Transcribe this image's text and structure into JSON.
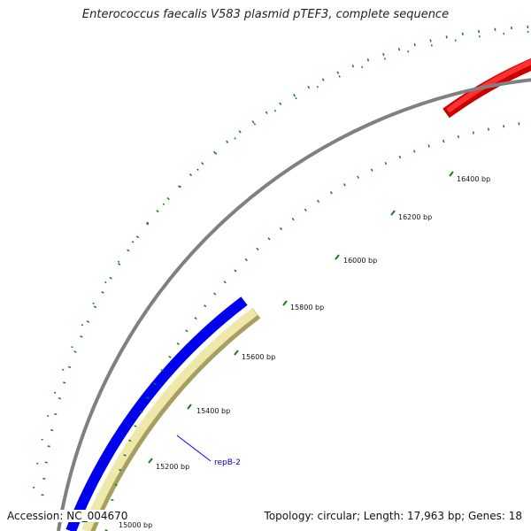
{
  "header": {
    "title": "Enterococcus faecalis V583 plasmid pTEF3, complete sequence"
  },
  "footer": {
    "accession": "Accession: NC_004670",
    "summary": "Topology: circular; Length: 17,963 bp; Genes: 18"
  },
  "map": {
    "bp_ticks": [
      {
        "bp": 15000,
        "label": "15000 bp"
      },
      {
        "bp": 15200,
        "label": "15200 bp"
      },
      {
        "bp": 15400,
        "label": "15400 bp"
      },
      {
        "bp": 15600,
        "label": "15600 bp"
      },
      {
        "bp": 15800,
        "label": "15800 bp"
      },
      {
        "bp": 16000,
        "label": "16000 bp"
      },
      {
        "bp": 16200,
        "label": "16200 bp"
      },
      {
        "bp": 16400,
        "label": "16400 bp"
      }
    ],
    "features": [
      {
        "name": "repB-2",
        "strand": "minus",
        "color": "#eee8aa"
      },
      {
        "name": "",
        "strand": "plus",
        "color": "#0000ff"
      },
      {
        "name": "",
        "strand": "plus",
        "color": "#ff0000"
      }
    ],
    "gene_label": "repB-2",
    "colors": {
      "backbone": "#888888",
      "ticks": "#1a7a1a",
      "label_line": "#0000ff",
      "label_text": "#0000cc"
    }
  }
}
